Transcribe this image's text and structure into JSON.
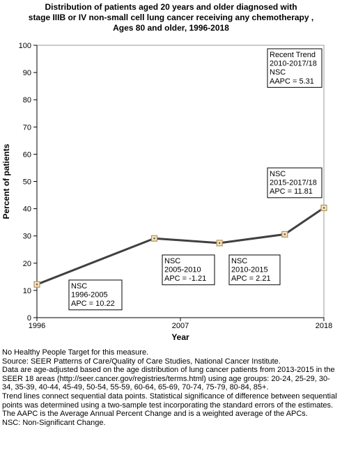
{
  "chart_data": {
    "type": "line",
    "title_lines": [
      "Distribution of patients aged 20 years and older diagnosed with",
      "stage IIIB or IV non-small cell lung cancer receiving any chemotherapy ,",
      "Ages 80 and older,  1996-2018"
    ],
    "xlabel": "Year",
    "ylabel": "Percent of patients",
    "xlim": [
      1996,
      2018
    ],
    "ylim": [
      0,
      100
    ],
    "x_ticks": [
      1996,
      2007,
      2018
    ],
    "y_ticks": [
      0,
      10,
      20,
      30,
      40,
      50,
      60,
      70,
      80,
      90,
      100
    ],
    "grid": false,
    "points": [
      {
        "x": 1996,
        "y": 12.2
      },
      {
        "x": 2005,
        "y": 29.1
      },
      {
        "x": 2010,
        "y": 27.4
      },
      {
        "x": 2015,
        "y": 30.6
      },
      {
        "x": 2018,
        "y": 40.3
      }
    ],
    "annotations": [
      {
        "id": "recent-trend",
        "lines": [
          "Recent Trend",
          "2010-2017/18",
          "NSC",
          "AAPC =  5.31"
        ]
      },
      {
        "id": "segment-1996-2005",
        "lines": [
          "NSC",
          "1996-2005",
          "APC = 10.22"
        ]
      },
      {
        "id": "segment-2005-2010",
        "lines": [
          "NSC",
          "2005-2010",
          "APC = -1.21"
        ]
      },
      {
        "id": "segment-2010-2015",
        "lines": [
          "NSC",
          "2010-2015",
          "APC =  2.21"
        ]
      },
      {
        "id": "segment-2015-2017-18",
        "lines": [
          "NSC",
          "2015-2017/18",
          "APC = 11.81"
        ]
      }
    ],
    "colors": {
      "line": "#404040",
      "marker_fill": "#f5e2bd",
      "marker_stroke": "#b3935e",
      "axis": "#000000"
    }
  },
  "footnotes": [
    "No Healthy People Target for this measure.",
    "Source: SEER Patterns of Care/Quality of Care Studies, National Cancer Institute.",
    "Data are age-adjusted based on the age distribution of lung cancer patients from 2013-2015 in the SEER 18 areas (http://seer.cancer.gov/registries/terms.html) using age groups: 20-24, 25-29, 30-34, 35-39, 40-44, 45-49, 50-54, 55-59, 60-64, 65-69, 70-74, 75-79, 80-84, 85+.",
    "Trend lines connect sequential data points. Statistical significance of difference between sequential points was determined using a two-sample test incorporating the standard errors of the estimates.",
    "The AAPC is the Average Annual Percent Change and is a weighted average of the APCs.",
    "NSC: Non-Significant Change."
  ]
}
